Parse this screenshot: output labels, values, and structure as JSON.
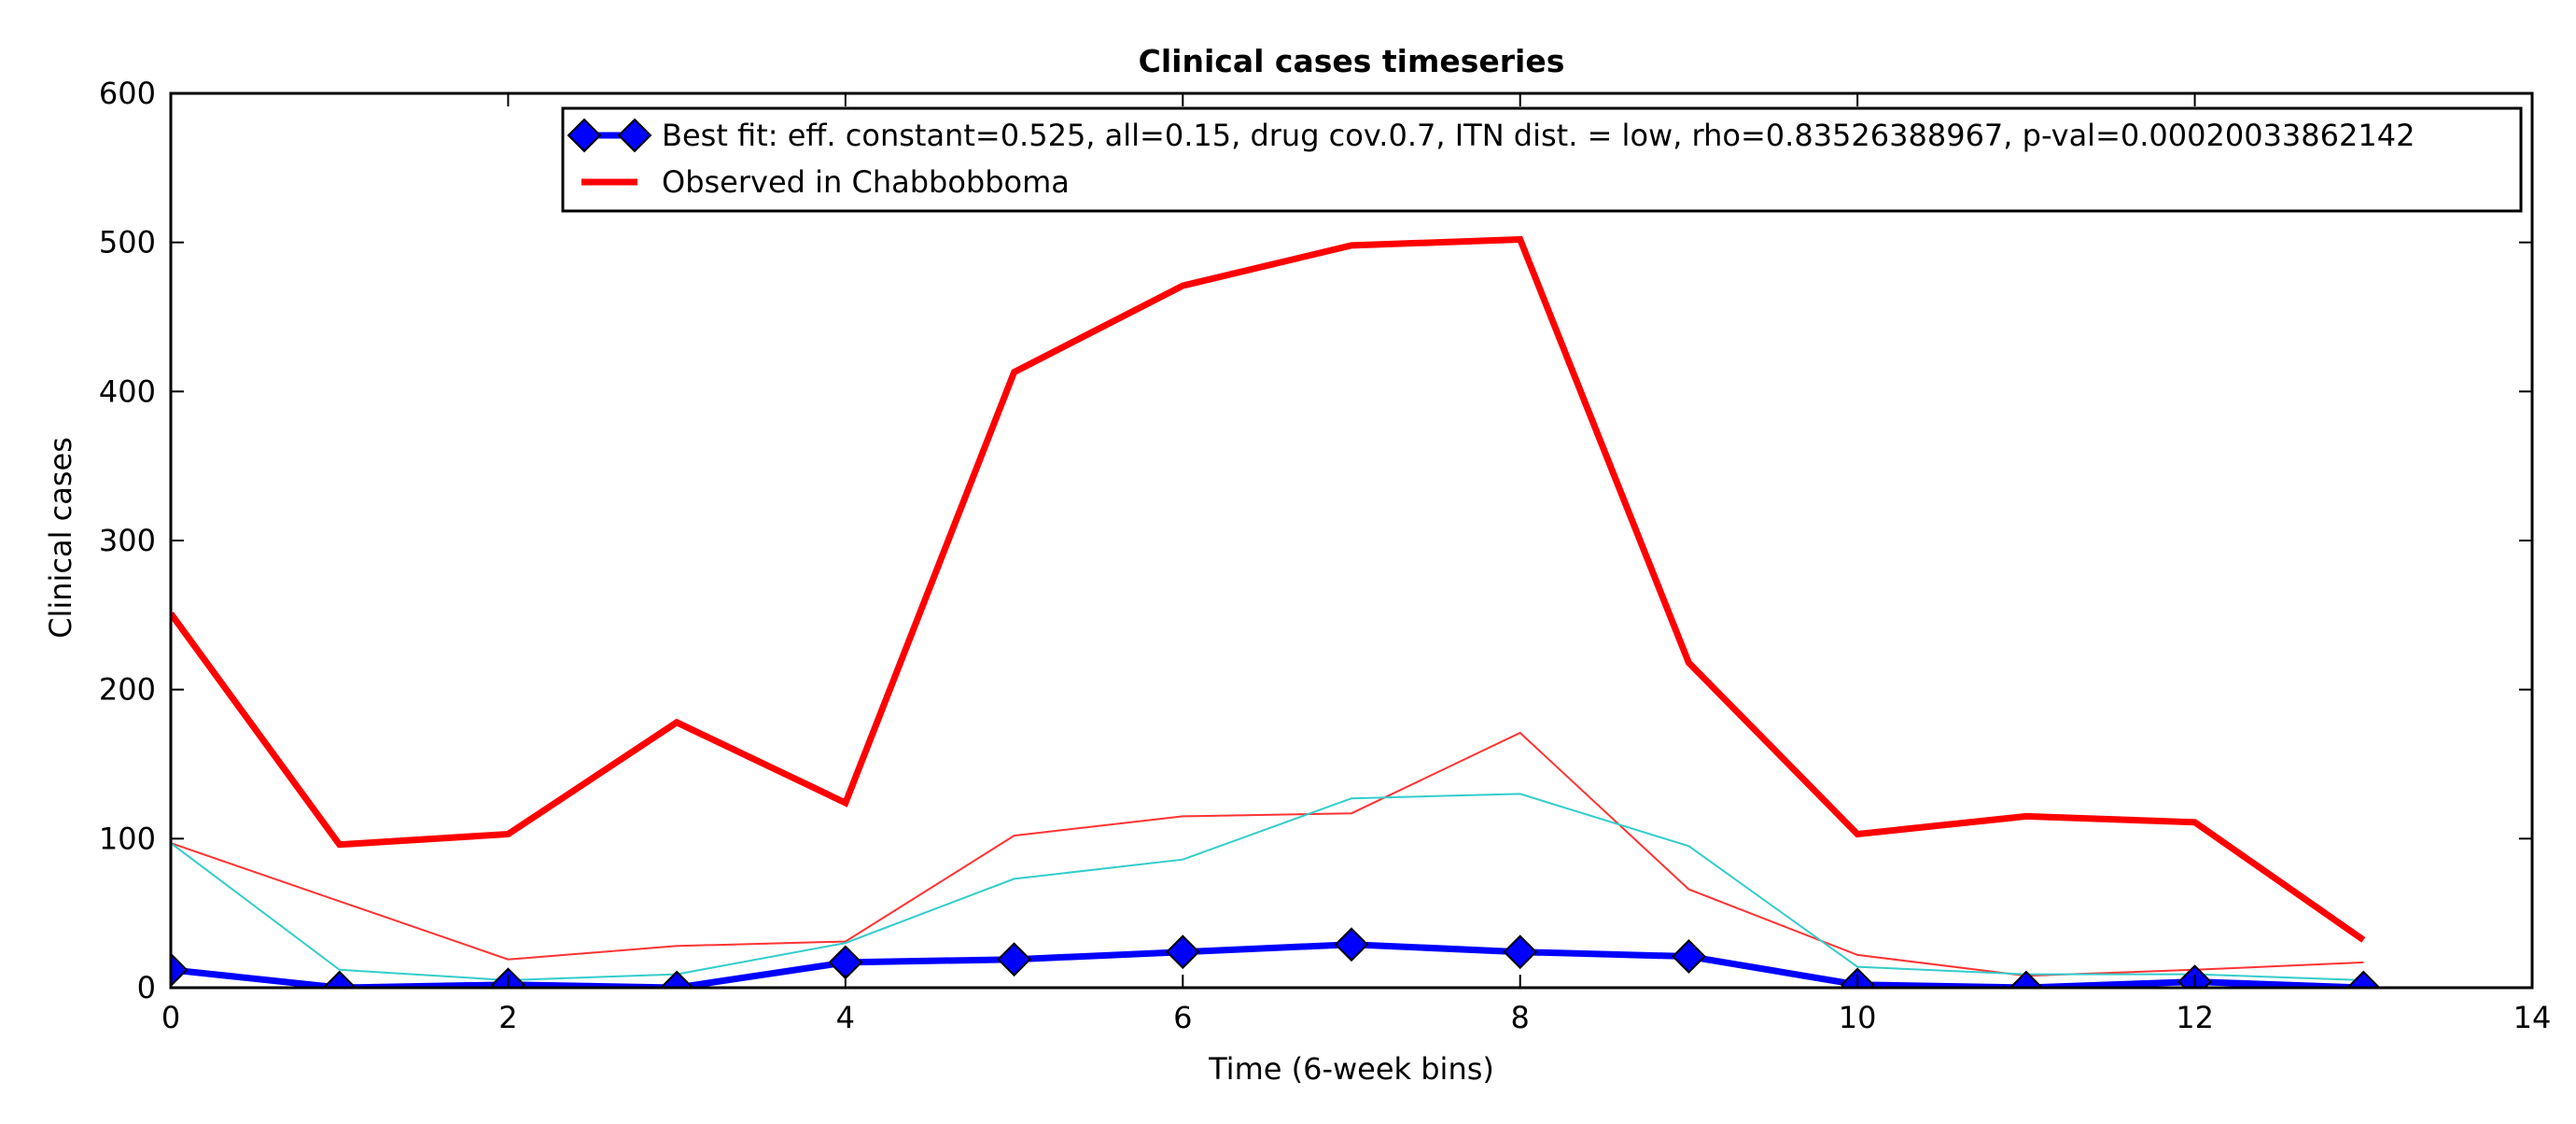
{
  "chart_data": {
    "type": "line",
    "title": "Clinical cases timeseries",
    "xlabel": "Time (6-week bins)",
    "ylabel": "Clinical cases",
    "xlim": [
      0,
      14
    ],
    "ylim": [
      0,
      600
    ],
    "x_ticks": [
      "0",
      "2",
      "4",
      "6",
      "8",
      "10",
      "12",
      "14"
    ],
    "y_ticks": [
      "0",
      "100",
      "200",
      "300",
      "400",
      "500",
      "600"
    ],
    "grid": false,
    "legend_position": "top-right",
    "x": [
      0,
      1,
      2,
      3,
      4,
      5,
      6,
      7,
      8,
      9,
      10,
      11,
      12,
      13
    ],
    "series": [
      {
        "name": "Best fit: eff. constant=0.525, all=0.15, drug cov.0.7, ITN dist. = low, rho=0.83526388967, p-val=0.00020033862142",
        "color": "#0000ff",
        "marker": "diamond",
        "in_legend": true,
        "values": [
          12,
          0,
          2,
          0,
          17,
          19,
          24,
          29,
          24,
          21,
          2,
          0,
          4,
          0
        ]
      },
      {
        "name": "Observed in Chabbobboma",
        "color": "#ff0000",
        "marker": "none",
        "in_legend": true,
        "values": [
          251,
          96,
          103,
          178,
          124,
          413,
          471,
          498,
          502,
          218,
          103,
          115,
          111,
          32
        ]
      },
      {
        "name": "",
        "color": "#ff3333",
        "marker": "none",
        "in_legend": false,
        "values": [
          97,
          58,
          19,
          28,
          31,
          102,
          115,
          117,
          171,
          66,
          22,
          8,
          12,
          17
        ]
      },
      {
        "name": "",
        "color": "#33cccc",
        "marker": "none",
        "in_legend": false,
        "values": [
          97,
          12,
          5,
          9,
          30,
          73,
          86,
          127,
          130,
          95,
          14,
          9,
          9,
          5
        ]
      }
    ]
  }
}
